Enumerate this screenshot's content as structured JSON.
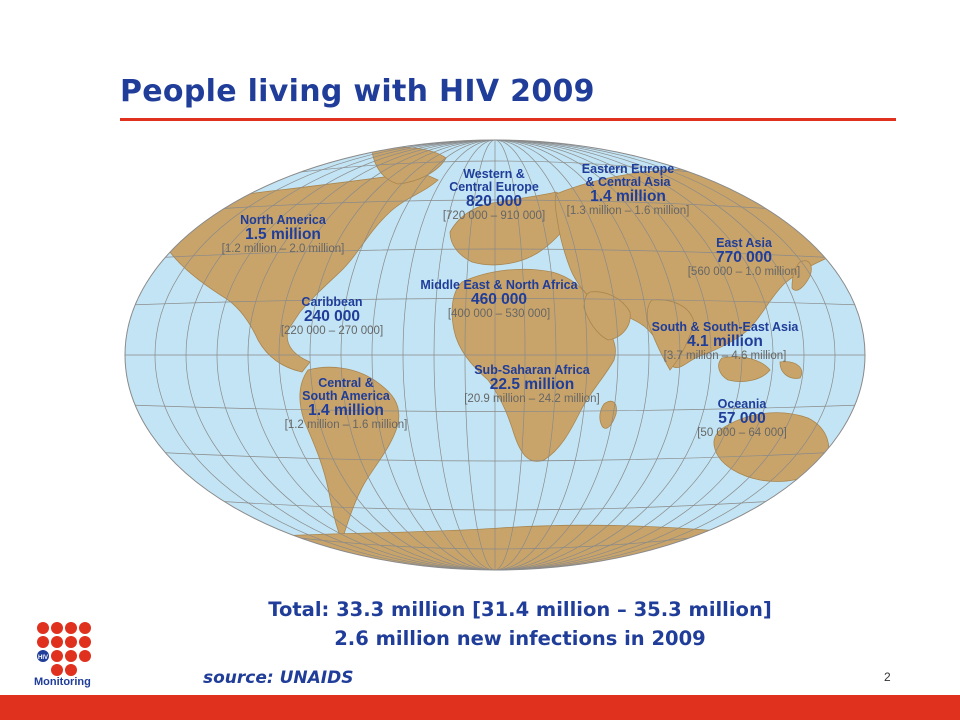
{
  "slide": {
    "title": "People living with HIV 2009",
    "page_number": "2",
    "source": "source:  UNAIDS"
  },
  "totals": {
    "line1": "Total: 33.3 million [31.4 million – 35.3 million]",
    "line2": "2.6 million new infections in 2009"
  },
  "regions": {
    "north_america": {
      "name": "North America",
      "value": "1.5 million",
      "range": "[1.2 million – 2.0 million]"
    },
    "caribbean": {
      "name": "Caribbean",
      "value": "240 000",
      "range": "[220 000 – 270 000]"
    },
    "central_south_america": {
      "name1": "Central &",
      "name2": "South America",
      "value": "1.4 million",
      "range": "[1.2 million – 1.6 million]"
    },
    "western_central_europe": {
      "name1": "Western &",
      "name2": "Central Europe",
      "value": "820 000",
      "range": "[720 000 – 910 000]"
    },
    "eastern_europe_central_asia": {
      "name1": "Eastern Europe",
      "name2": "& Central Asia",
      "value": "1.4 million",
      "range": "[1.3 million – 1.6 million]"
    },
    "middle_east_north_africa": {
      "name": "Middle East & North Africa",
      "value": "460 000",
      "range": "[400 000 – 530 000]"
    },
    "east_asia": {
      "name": "East Asia",
      "value": "770 000",
      "range": "[560 000 – 1.0 million]"
    },
    "south_southeast_asia": {
      "name": "South & South-East Asia",
      "value": "4.1 million",
      "range": "[3.7 million – 4.6 million]"
    },
    "sub_saharan_africa": {
      "name": "Sub-Saharan Africa",
      "value": "22.5 million",
      "range": "[20.9 million – 24.2 million]"
    },
    "oceania": {
      "name": "Oceania",
      "value": "57 000",
      "range": "[50 000 – 64 000]"
    }
  },
  "logo": {
    "text": "Monitoring",
    "badge": "HIV"
  },
  "colors": {
    "title_blue": "#1f3d99",
    "accent_red": "#e0301e",
    "ocean": "#c2e4f4",
    "land": "#c9a46a"
  }
}
